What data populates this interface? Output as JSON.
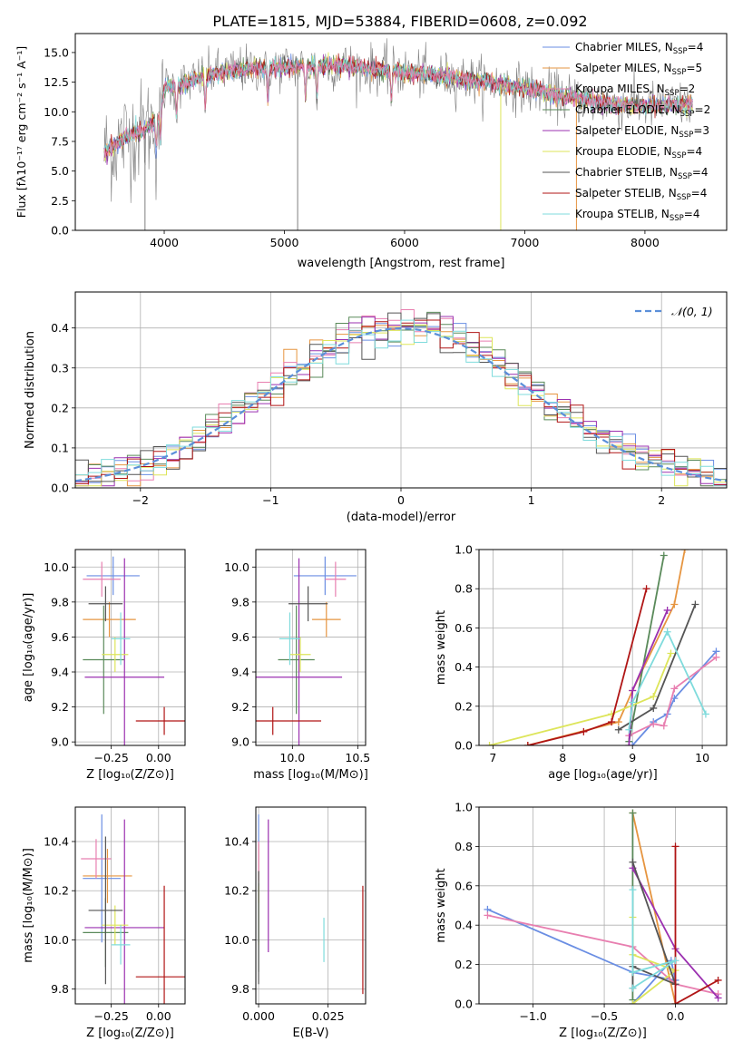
{
  "figure": {
    "title": "PLATE=1815, MJD=53884, FIBERID=0608, z=0.092"
  },
  "palette": {
    "legend_colors": [
      "#6a8ee3",
      "#e69540",
      "#e87fb0",
      "#5a8a5a",
      "#9b30b0",
      "#dde55a",
      "#555555",
      "#b01515",
      "#7fdbdc"
    ],
    "gauss_color": "#5b8fd9",
    "grid_color": "#b0b0b0"
  },
  "chart_data": [
    {
      "id": "spectrum",
      "type": "line",
      "title": "PLATE=1815, MJD=53884, FIBERID=0608, z=0.092",
      "xlabel": "wavelength [Angstrom, rest frame]",
      "ylabel": "Flux [fλ10⁻¹⁷ erg cm⁻² s⁻¹ A⁻¹]",
      "xlim": [
        3260,
        8680
      ],
      "ylim": [
        0,
        16.6
      ],
      "xticks": [
        4000,
        5000,
        6000,
        7000,
        8000
      ],
      "yticks": [
        0.0,
        2.5,
        5.0,
        7.5,
        10.0,
        12.5,
        15.0
      ],
      "grid": false,
      "legend_position": "top-right",
      "legend": [
        {
          "label": "Chabrier MILES, N",
          "sub": "SSP",
          "count": "=4"
        },
        {
          "label": "Salpeter MILES, N",
          "sub": "SSP",
          "count": "=5"
        },
        {
          "label": "Kroupa MILES, N",
          "sub": "SSP",
          "count": "=2"
        },
        {
          "label": "Chabrier ELODIE, N",
          "sub": "SSP",
          "count": "=2"
        },
        {
          "label": "Salpeter ELODIE, N",
          "sub": "SSP",
          "count": "=3"
        },
        {
          "label": "Kroupa ELODIE, N",
          "sub": "SSP",
          "count": "=4"
        },
        {
          "label": "Chabrier STELIB, N",
          "sub": "SSP",
          "count": "=4"
        },
        {
          "label": "Salpeter STELIB, N",
          "sub": "SSP",
          "count": "=4"
        },
        {
          "label": "Kroupa STELIB, N",
          "sub": "SSP",
          "count": "=4"
        }
      ],
      "continuum": [
        [
          3500,
          6.5
        ],
        [
          3700,
          8.0
        ],
        [
          3850,
          8.5
        ],
        [
          3950,
          9.5
        ],
        [
          4000,
          12.0
        ],
        [
          4200,
          12.5
        ],
        [
          4400,
          13.2
        ],
        [
          4600,
          13.5
        ],
        [
          4800,
          13.7
        ],
        [
          5000,
          13.8
        ],
        [
          5500,
          13.9
        ],
        [
          6000,
          13.3
        ],
        [
          6500,
          12.8
        ],
        [
          7000,
          12.0
        ],
        [
          7200,
          11.5
        ],
        [
          7500,
          11.0
        ],
        [
          7800,
          10.5
        ],
        [
          8000,
          10.5
        ],
        [
          8400,
          10.6
        ]
      ]
    },
    {
      "id": "residuals",
      "type": "line",
      "xlabel": "(data-model)/error",
      "ylabel": "Normed distribution",
      "xlim": [
        -2.5,
        2.5
      ],
      "ylim": [
        0,
        0.49
      ],
      "xticks": [
        -2,
        -1,
        0,
        1,
        2
      ],
      "xtick_labels": [
        "−2",
        "−1",
        "0",
        "1",
        "2"
      ],
      "yticks": [
        0.0,
        0.1,
        0.2,
        0.3,
        0.4
      ],
      "grid": true,
      "legend_position": "top-right",
      "legend": [
        "𝒩(0, 1)"
      ]
    },
    {
      "id": "age_vs_Z",
      "type": "scatter",
      "xlabel": "Z [log₁₀(Z/Z⊙)]",
      "ylabel": "age  [log₁₀(age/yr)]",
      "xlim": [
        -0.44,
        0.14
      ],
      "ylim": [
        8.98,
        10.1
      ],
      "xticks": [
        -0.25,
        0.0
      ],
      "xtick_labels": [
        "−0.25",
        "0.00"
      ],
      "yticks": [
        9.0,
        9.2,
        9.4,
        9.6,
        9.8,
        10.0
      ],
      "grid": true,
      "points": [
        {
          "x": -0.24,
          "xerr": 0.14,
          "y": 9.95,
          "yerr": 0.11
        },
        {
          "x": -0.26,
          "xerr": 0.14,
          "y": 9.7,
          "yerr": 0.1
        },
        {
          "x": -0.3,
          "xerr": 0.1,
          "y": 9.93,
          "yerr": 0.1
        },
        {
          "x": -0.29,
          "xerr": 0.11,
          "y": 9.47,
          "yerr": 0.31
        },
        {
          "x": -0.18,
          "xerr": 0.21,
          "y": 9.37,
          "yerr": 0.68
        },
        {
          "x": -0.23,
          "xerr": 0.07,
          "y": 9.5,
          "yerr": 0.1
        },
        {
          "x": -0.28,
          "xerr": 0.09,
          "y": 9.79,
          "yerr": 0.1
        },
        {
          "x": 0.03,
          "xerr": 0.15,
          "y": 9.12,
          "yerr": 0.08
        },
        {
          "x": -0.2,
          "xerr": 0.05,
          "y": 9.59,
          "yerr": 0.15
        }
      ]
    },
    {
      "id": "age_vs_mass",
      "type": "scatter",
      "xlabel": "mass [log₁₀(M/M⊙)]",
      "ylabel": "",
      "xlim": [
        9.72,
        10.56
      ],
      "ylim": [
        8.98,
        10.1
      ],
      "xticks": [
        10.0,
        10.5
      ],
      "xtick_labels": [
        "10.0",
        "10.5"
      ],
      "yticks": [
        9.0,
        9.2,
        9.4,
        9.6,
        9.8,
        10.0
      ],
      "grid": true,
      "points": [
        {
          "x": 10.25,
          "xerr": 0.24,
          "y": 9.95,
          "yerr": 0.11
        },
        {
          "x": 10.26,
          "xerr": 0.11,
          "y": 9.7,
          "yerr": 0.1
        },
        {
          "x": 10.33,
          "xerr": 0.08,
          "y": 9.93,
          "yerr": 0.1
        },
        {
          "x": 10.03,
          "xerr": 0.14,
          "y": 9.47,
          "yerr": 0.31
        },
        {
          "x": 10.05,
          "xerr": 0.33,
          "y": 9.37,
          "yerr": 0.68
        },
        {
          "x": 10.06,
          "xerr": 0.08,
          "y": 9.5,
          "yerr": 0.1
        },
        {
          "x": 10.12,
          "xerr": 0.15,
          "y": 9.79,
          "yerr": 0.1
        },
        {
          "x": 9.85,
          "xerr": 0.37,
          "y": 9.12,
          "yerr": 0.08
        },
        {
          "x": 9.98,
          "xerr": 0.08,
          "y": 9.59,
          "yerr": 0.15
        }
      ]
    },
    {
      "id": "mw_vs_age",
      "type": "line",
      "xlabel": "age  [log₁₀(age/yr)]",
      "ylabel": "mass weight",
      "xlim": [
        6.8,
        10.35
      ],
      "ylim": [
        0,
        1.0
      ],
      "xticks": [
        7,
        8,
        9,
        10
      ],
      "yticks": [
        0.0,
        0.2,
        0.4,
        0.6,
        0.8,
        1.0
      ],
      "grid": true,
      "series": [
        {
          "points": [
            [
              9.0,
              0.0
            ],
            [
              9.3,
              0.12
            ],
            [
              9.5,
              0.16
            ],
            [
              9.6,
              0.24
            ],
            [
              10.2,
              0.48
            ]
          ]
        },
        {
          "points": [
            [
              7.5,
              0.0
            ],
            [
              8.8,
              0.12
            ],
            [
              9.0,
              0.28
            ],
            [
              9.6,
              0.72
            ],
            [
              9.75,
              1.0
            ]
          ]
        },
        {
          "points": [
            [
              8.95,
              0.05
            ],
            [
              9.3,
              0.11
            ],
            [
              9.45,
              0.1
            ],
            [
              9.6,
              0.29
            ],
            [
              10.2,
              0.45
            ]
          ]
        },
        {
          "points": [
            [
              8.95,
              0.02
            ],
            [
              9.45,
              0.97
            ]
          ]
        },
        {
          "points": [
            [
              8.95,
              0.0
            ],
            [
              9.0,
              0.28
            ],
            [
              9.5,
              0.69
            ]
          ]
        },
        {
          "points": [
            [
              6.95,
              0.0
            ],
            [
              8.7,
              0.16
            ],
            [
              9.3,
              0.25
            ],
            [
              9.55,
              0.47
            ]
          ]
        },
        {
          "points": [
            [
              8.8,
              0.08
            ],
            [
              9.3,
              0.19
            ],
            [
              9.9,
              0.72
            ]
          ]
        },
        {
          "points": [
            [
              7.5,
              0.0
            ],
            [
              8.3,
              0.07
            ],
            [
              8.7,
              0.12
            ],
            [
              9.2,
              0.8
            ]
          ]
        },
        {
          "points": [
            [
              8.95,
              0.08
            ],
            [
              9.0,
              0.22
            ],
            [
              9.5,
              0.58
            ],
            [
              10.05,
              0.16
            ]
          ]
        }
      ]
    },
    {
      "id": "mass_vs_Z",
      "type": "scatter",
      "xlabel": "Z [log₁₀(Z/Z⊙)]",
      "ylabel": "mass [log₁₀(M/M⊙)]",
      "xlim": [
        -0.44,
        0.14
      ],
      "ylim": [
        9.74,
        10.54
      ],
      "xticks": [
        -0.25,
        0.0
      ],
      "xtick_labels": [
        "−0.25",
        "0.00"
      ],
      "yticks": [
        9.8,
        10.0,
        10.2,
        10.4
      ],
      "grid": true,
      "points": [
        {
          "x": -0.3,
          "xerr": 0.1,
          "y": 10.25,
          "yerr": 0.26
        },
        {
          "x": -0.27,
          "xerr": 0.13,
          "y": 10.26,
          "yerr": 0.11
        },
        {
          "x": -0.33,
          "xerr": 0.08,
          "y": 10.33,
          "yerr": 0.08
        },
        {
          "x": -0.28,
          "xerr": 0.12,
          "y": 10.03,
          "yerr": 0.14
        },
        {
          "x": -0.18,
          "xerr": 0.21,
          "y": 10.05,
          "yerr": 0.44
        },
        {
          "x": -0.23,
          "xerr": 0.07,
          "y": 10.06,
          "yerr": 0.08
        },
        {
          "x": -0.28,
          "xerr": 0.09,
          "y": 10.12,
          "yerr": 0.3
        },
        {
          "x": 0.03,
          "xerr": 0.15,
          "y": 9.85,
          "yerr": 0.37
        },
        {
          "x": -0.2,
          "xerr": 0.05,
          "y": 9.98,
          "yerr": 0.08
        }
      ]
    },
    {
      "id": "mass_vs_ebv",
      "type": "scatter",
      "xlabel": "E(B-V)",
      "ylabel": "",
      "xlim": [
        -0.001,
        0.0385
      ],
      "ylim": [
        9.74,
        10.54
      ],
      "xticks": [
        0.0,
        0.025
      ],
      "xtick_labels": [
        "0.000",
        "0.025"
      ],
      "yticks": [
        9.8,
        10.0,
        10.2,
        10.4
      ],
      "grid": true,
      "points": [
        {
          "x": 0.0,
          "xerr": 0.0,
          "y": 10.25,
          "yerr": 0.26
        },
        {
          "x": 0.0,
          "xerr": 0.0,
          "y": 10.27,
          "yerr": 0.12
        },
        {
          "x": 0.0,
          "xerr": 0.0,
          "y": 10.32,
          "yerr": 0.08
        },
        {
          "x": 0.0,
          "xerr": 0.0,
          "y": 10.05,
          "yerr": 0.18
        },
        {
          "x": 0.0035,
          "xerr": 0.0,
          "y": 10.22,
          "yerr": 0.27
        },
        {
          "x": 0.0,
          "xerr": 0.0,
          "y": 10.1,
          "yerr": 0.12
        },
        {
          "x": 0.0,
          "xerr": 0.0,
          "y": 10.05,
          "yerr": 0.23
        },
        {
          "x": 0.0375,
          "xerr": 0.0,
          "y": 10.0,
          "yerr": 0.22
        },
        {
          "x": 0.0235,
          "xerr": 0.0,
          "y": 10.0,
          "yerr": 0.09
        }
      ]
    },
    {
      "id": "mw_vs_Z",
      "type": "line",
      "xlabel": "Z [log₁₀(Z/Z⊙)]",
      "ylabel": "mass weight",
      "xlim": [
        -1.38,
        0.36
      ],
      "ylim": [
        0,
        1.0
      ],
      "xticks": [
        -1.0,
        -0.5,
        0.0
      ],
      "xtick_labels": [
        "−1.0",
        "−0.5",
        "0.0"
      ],
      "yticks": [
        0.0,
        0.2,
        0.4,
        0.6,
        0.8,
        1.0
      ],
      "grid": true,
      "series": [
        {
          "points": [
            [
              -1.32,
              0.48
            ],
            [
              -0.3,
              0.16
            ],
            [
              0.0,
              0.12
            ],
            [
              -0.03,
              0.22
            ],
            [
              -0.3,
              0.0
            ]
          ]
        },
        {
          "points": [
            [
              -0.3,
              0.97
            ],
            [
              0.0,
              0.0
            ]
          ]
        },
        {
          "points": [
            [
              -1.32,
              0.45
            ],
            [
              -0.3,
              0.29
            ],
            [
              0.0,
              0.1
            ],
            [
              0.3,
              0.05
            ]
          ]
        },
        {
          "points": [
            [
              -0.3,
              0.97
            ],
            [
              -0.3,
              0.02
            ]
          ]
        },
        {
          "points": [
            [
              -0.3,
              0.69
            ],
            [
              0.0,
              0.28
            ],
            [
              0.3,
              0.03
            ]
          ]
        },
        {
          "points": [
            [
              -0.3,
              0.44
            ],
            [
              -0.3,
              0.25
            ],
            [
              0.0,
              0.17
            ],
            [
              -0.3,
              0.0
            ]
          ]
        },
        {
          "points": [
            [
              -0.3,
              0.72
            ],
            [
              0.0,
              0.1
            ],
            [
              -0.3,
              0.19
            ],
            [
              -0.3,
              0.08
            ]
          ]
        },
        {
          "points": [
            [
              0.0,
              0.8
            ],
            [
              0.0,
              0.0
            ],
            [
              0.3,
              0.12
            ]
          ]
        },
        {
          "points": [
            [
              -0.3,
              0.58
            ],
            [
              -0.3,
              0.16
            ],
            [
              0.0,
              0.22
            ],
            [
              -0.3,
              0.08
            ]
          ]
        }
      ]
    }
  ]
}
